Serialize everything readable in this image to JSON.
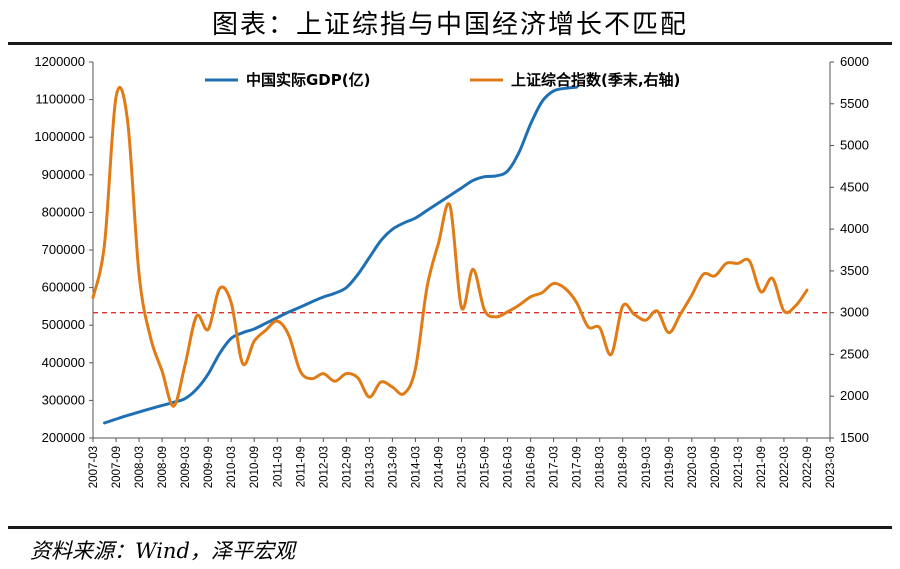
{
  "header": {
    "title": "图表：上证综指与中国经济增长不匹配"
  },
  "footer": {
    "source": "资料来源：Wind，泽平宏观"
  },
  "chart_data": {
    "type": "line",
    "x_categories": [
      "2007-03",
      "2007-09",
      "2008-03",
      "2008-09",
      "2009-03",
      "2009-09",
      "2010-03",
      "2010-09",
      "2011-03",
      "2011-09",
      "2012-03",
      "2012-09",
      "2013-03",
      "2013-09",
      "2014-03",
      "2014-09",
      "2015-03",
      "2015-09",
      "2016-03",
      "2016-09",
      "2017-03",
      "2017-09",
      "2018-03",
      "2018-09",
      "2019-03",
      "2019-09",
      "2020-03",
      "2020-09",
      "2021-03",
      "2021-09",
      "2022-03",
      "2022-09",
      "2023-03"
    ],
    "y_left": {
      "ticks": [
        200000,
        300000,
        400000,
        500000,
        600000,
        700000,
        800000,
        900000,
        1000000,
        1100000,
        1200000
      ],
      "labels": [
        "200000",
        "300000",
        "400000",
        "500000",
        "600000",
        "700000",
        "800000",
        "900000",
        "1000000",
        "1100000",
        "1200000"
      ],
      "range": [
        200000,
        1200000
      ]
    },
    "y_right": {
      "ticks": [
        1500,
        2000,
        2500,
        3000,
        3500,
        4000,
        4500,
        5000,
        5500,
        6000
      ],
      "labels": [
        "1500",
        "2000",
        "2500",
        "3000",
        "3500",
        "4000",
        "4500",
        "5000",
        "5500",
        "6000"
      ],
      "range": [
        1500,
        6000
      ]
    },
    "series": [
      {
        "name": "中国实际GDP(亿)",
        "axis": "left",
        "color": "#1f6fb4",
        "points": [
          [
            1,
            240000
          ],
          [
            3,
            260000
          ],
          [
            5,
            278000
          ],
          [
            7,
            295000
          ],
          [
            8,
            305000
          ],
          [
            9,
            330000
          ],
          [
            10,
            370000
          ],
          [
            11,
            425000
          ],
          [
            12,
            465000
          ],
          [
            13,
            480000
          ],
          [
            14,
            490000
          ],
          [
            15,
            505000
          ],
          [
            16,
            520000
          ],
          [
            17,
            535000
          ],
          [
            18,
            548000
          ],
          [
            19,
            562000
          ],
          [
            20,
            575000
          ],
          [
            21,
            585000
          ],
          [
            22,
            600000
          ],
          [
            23,
            635000
          ],
          [
            24,
            680000
          ],
          [
            25,
            725000
          ],
          [
            26,
            755000
          ],
          [
            27,
            772000
          ],
          [
            28,
            785000
          ],
          [
            29,
            805000
          ],
          [
            30,
            825000
          ],
          [
            31,
            845000
          ],
          [
            32,
            865000
          ],
          [
            33,
            885000
          ],
          [
            34,
            895000
          ],
          [
            35,
            897000
          ],
          [
            36,
            910000
          ],
          [
            37,
            960000
          ],
          [
            38,
            1035000
          ],
          [
            39,
            1095000
          ],
          [
            40,
            1123000
          ],
          [
            41,
            1130000
          ],
          [
            42,
            1133000
          ]
        ]
      },
      {
        "name": "上证综合指数(季末,右轴)",
        "axis": "right",
        "color": "#e07b16",
        "points": [
          [
            0,
            3180
          ],
          [
            1,
            3820
          ],
          [
            2,
            5580
          ],
          [
            3,
            5300
          ],
          [
            4,
            3460
          ],
          [
            5,
            2700
          ],
          [
            6,
            2300
          ],
          [
            7,
            1880
          ],
          [
            8,
            2380
          ],
          [
            9,
            2960
          ],
          [
            10,
            2800
          ],
          [
            11,
            3290
          ],
          [
            12,
            3120
          ],
          [
            13,
            2390
          ],
          [
            14,
            2660
          ],
          [
            15,
            2790
          ],
          [
            16,
            2900
          ],
          [
            17,
            2730
          ],
          [
            18,
            2300
          ],
          [
            19,
            2210
          ],
          [
            20,
            2270
          ],
          [
            21,
            2180
          ],
          [
            22,
            2270
          ],
          [
            23,
            2220
          ],
          [
            24,
            1990
          ],
          [
            25,
            2170
          ],
          [
            26,
            2110
          ],
          [
            27,
            2030
          ],
          [
            28,
            2330
          ],
          [
            29,
            3300
          ],
          [
            30,
            3830
          ],
          [
            31,
            4280
          ],
          [
            32,
            3060
          ],
          [
            33,
            3520
          ],
          [
            34,
            3030
          ],
          [
            35,
            2950
          ],
          [
            36,
            3010
          ],
          [
            37,
            3090
          ],
          [
            38,
            3190
          ],
          [
            39,
            3240
          ],
          [
            40,
            3350
          ],
          [
            41,
            3290
          ],
          [
            42,
            3120
          ],
          [
            43,
            2830
          ],
          [
            44,
            2820
          ],
          [
            45,
            2500
          ],
          [
            46,
            3080
          ],
          [
            47,
            2980
          ],
          [
            48,
            2910
          ],
          [
            49,
            3020
          ],
          [
            50,
            2760
          ],
          [
            51,
            2980
          ],
          [
            52,
            3210
          ],
          [
            53,
            3460
          ],
          [
            54,
            3440
          ],
          [
            55,
            3590
          ],
          [
            56,
            3590
          ],
          [
            57,
            3620
          ],
          [
            58,
            3250
          ],
          [
            59,
            3410
          ],
          [
            60,
            3020
          ],
          [
            61,
            3080
          ],
          [
            62,
            3270
          ]
        ]
      }
    ],
    "reference_line": {
      "axis": "right",
      "value": 3000,
      "color": "#e03030",
      "style": "dashed"
    },
    "legend_position": "top",
    "grid": false
  }
}
